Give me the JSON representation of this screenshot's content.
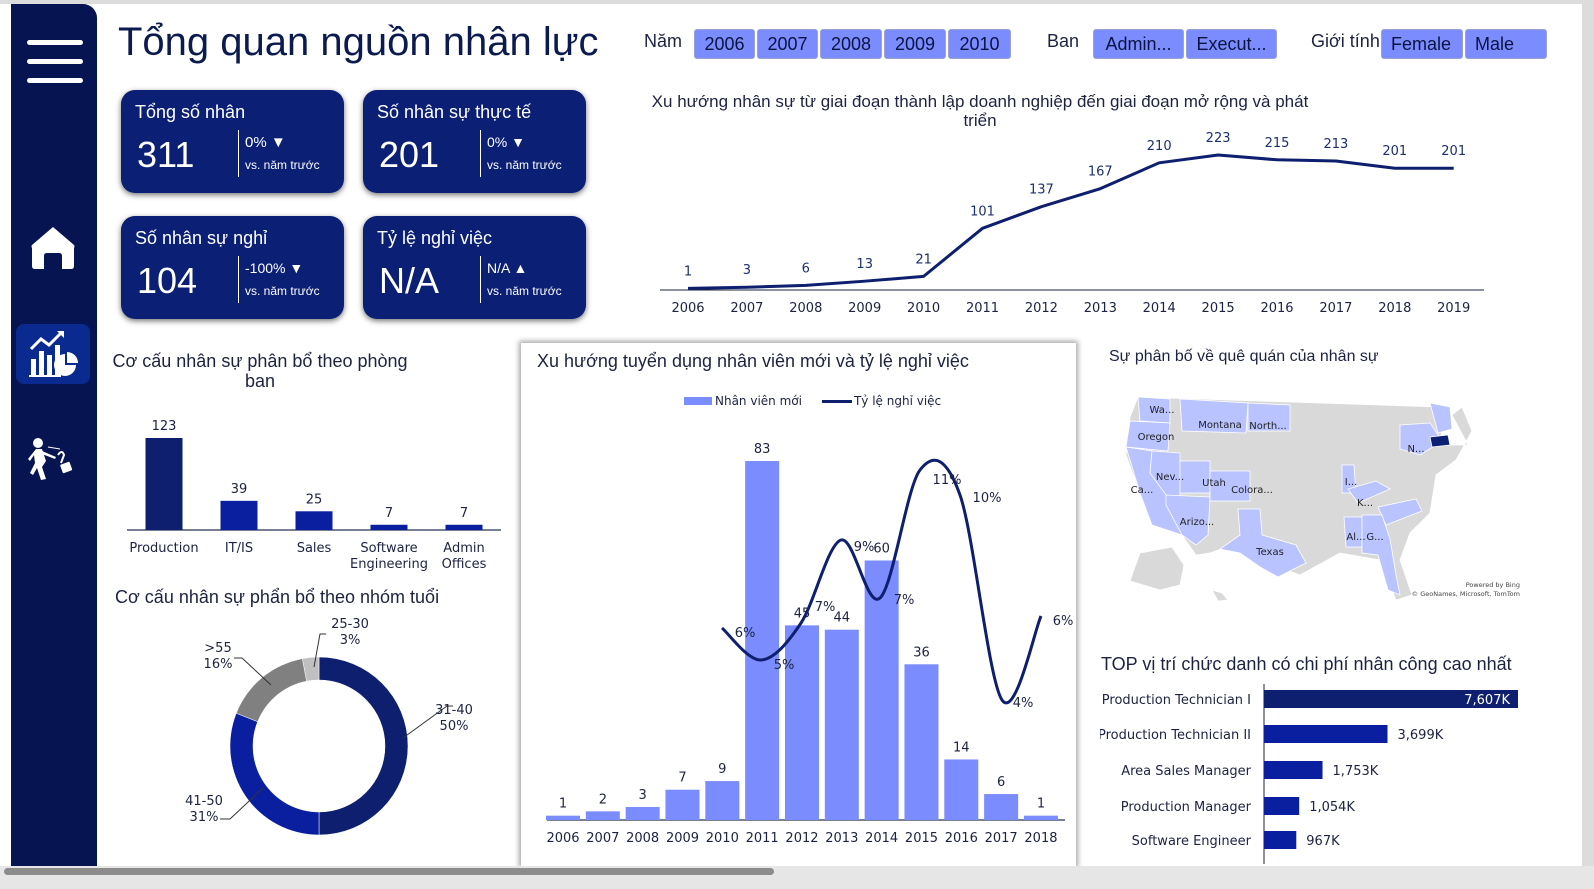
{
  "header": {
    "title": "Tổng quan nguồn nhân lực"
  },
  "sidebar": {
    "items": [
      {
        "name": "menu",
        "icon": "hamburger-menu-icon"
      },
      {
        "name": "home",
        "icon": "home-icon"
      },
      {
        "name": "analytics",
        "icon": "chart-analytics-icon",
        "active": true
      },
      {
        "name": "attrition",
        "icon": "person-leaving-icon"
      }
    ]
  },
  "slicers": {
    "year": {
      "label": "Năm",
      "options": [
        "2006",
        "2007",
        "2008",
        "2009",
        "2010"
      ]
    },
    "department": {
      "label": "Ban",
      "options": [
        "Admin...",
        "Execut..."
      ]
    },
    "gender": {
      "label": "Giới tính",
      "options": [
        "Female",
        "Male"
      ]
    }
  },
  "kpis": [
    {
      "label": "Tổng số nhân",
      "value": "311",
      "change": "0% ▼",
      "compare": "vs. năm trước"
    },
    {
      "label": "Số nhân sự thực tế",
      "value": "201",
      "change": "0% ▼",
      "compare": "vs. năm trước"
    },
    {
      "label": "Số nhân sự nghỉ",
      "value": "104",
      "change": "-100% ▼",
      "compare": "vs. năm trước"
    },
    {
      "label": "Tỷ lệ nghỉ việc",
      "value": "N/A",
      "change": "N/A ▲",
      "compare": "vs. năm trước"
    }
  ],
  "colors": {
    "sidebar": "#071452",
    "navy": "#0b1f75",
    "dark_navy": "#0d1f6e",
    "royal": "#0a1fa0",
    "periwinkle": "#7b8cff",
    "map_highlight": "#b9c3ff",
    "map_gray": "#d9d9d9",
    "map_dark": "#0b1f75"
  },
  "chart_data": [
    {
      "id": "headcount_trend",
      "type": "line",
      "title": "Xu hướng nhân sự từ giai đoạn thành lập doanh nghiệp đến giai đoạn mở rộng và phát triển",
      "title_line1": "Xu hướng nhân sự từ giai đoạn thành lập doanh nghiệp đến giai đoạn mở rộng và phát",
      "title_line2": "triển",
      "x": [
        "2006",
        "2007",
        "2008",
        "2009",
        "2010",
        "2011",
        "2012",
        "2013",
        "2014",
        "2015",
        "2016",
        "2017",
        "2018",
        "2019"
      ],
      "values": [
        1,
        3,
        6,
        13,
        21,
        101,
        137,
        167,
        210,
        223,
        215,
        213,
        201,
        201
      ],
      "xlabel": "",
      "ylabel": "",
      "grid": false
    },
    {
      "id": "department_distribution",
      "type": "bar",
      "title": "Cơ cấu nhân sự phân bổ theo phòng ban",
      "title_line1": "Cơ cấu nhân sự phân bổ theo phòng",
      "title_line2": "ban",
      "categories": [
        "Production",
        "IT/IS",
        "Sales",
        "Software Engineering",
        "Admin Offices"
      ],
      "category_lines": [
        [
          "Production"
        ],
        [
          "IT/IS"
        ],
        [
          "Sales"
        ],
        [
          "Software",
          "Engineering"
        ],
        [
          "Admin",
          "Offices"
        ]
      ],
      "values": [
        123,
        39,
        25,
        7,
        7
      ]
    },
    {
      "id": "age_distribution",
      "type": "pie",
      "donut": true,
      "title": "Cơ cấu nhân sự phẩn bổ theo nhóm tuổi",
      "categories": [
        "31-40",
        "41-50",
        ">55",
        "25-30"
      ],
      "values": [
        50,
        31,
        16,
        3
      ],
      "labels": [
        "50%",
        "31%",
        "16%",
        "3%"
      ]
    },
    {
      "id": "hiring_attrition",
      "type": "bar",
      "combo": "bar+line",
      "title": "Xu hướng tuyển dụng nhân viên mới và tỷ lệ nghỉ việc",
      "legend": [
        "Nhân viên mới",
        "Tỷ lệ nghỉ việc"
      ],
      "legend_position": "top",
      "categories": [
        "2006",
        "2007",
        "2008",
        "2009",
        "2010",
        "2011",
        "2012",
        "2013",
        "2014",
        "2015",
        "2016",
        "2017",
        "2018"
      ],
      "series": [
        {
          "name": "Nhân viên mới",
          "type": "bar",
          "values": [
            1,
            2,
            3,
            7,
            9,
            83,
            45,
            44,
            60,
            36,
            14,
            6,
            1
          ]
        },
        {
          "name": "Tỷ lệ nghỉ việc",
          "type": "line",
          "x": [
            "2010",
            "2011",
            "2012",
            "2013",
            "2014",
            "2015",
            "2016",
            "2017",
            "2018"
          ],
          "values": [
            6,
            5,
            7,
            9,
            7,
            11,
            10,
            4,
            6
          ],
          "labels": [
            "6%",
            "5%",
            "7%",
            "9%",
            "7%",
            "11%",
            "10%",
            "4%",
            "6%"
          ]
        }
      ]
    },
    {
      "id": "hometown_map",
      "type": "map",
      "title": "Sự phân bố về quê quán của nhân sự",
      "highlighted_labels": [
        "Wa...",
        "Oregon",
        "Montana",
        "North...",
        "Nev...",
        "Ca...",
        "Utah",
        "Colora...",
        "Arizo...",
        "Texas",
        "I...",
        "K...",
        "Al...",
        "G...",
        "N..."
      ],
      "attribution_line1": "Powered by Bing",
      "attribution_line2": "© GeoNames, Microsoft, TomTom"
    },
    {
      "id": "top_labor_cost",
      "type": "bar",
      "orientation": "horizontal",
      "title": "TOP vị trí chức danh có chi phí nhân công cao nhất",
      "categories": [
        "Production Technician I",
        "Production Technician II",
        "Area Sales Manager",
        "Production Manager",
        "Software Engineer"
      ],
      "values": [
        7607,
        3699,
        1753,
        1054,
        967
      ],
      "labels": [
        "7,607K",
        "3,699K",
        "1,753K",
        "1,054K",
        "967K"
      ],
      "unit": "K"
    }
  ]
}
